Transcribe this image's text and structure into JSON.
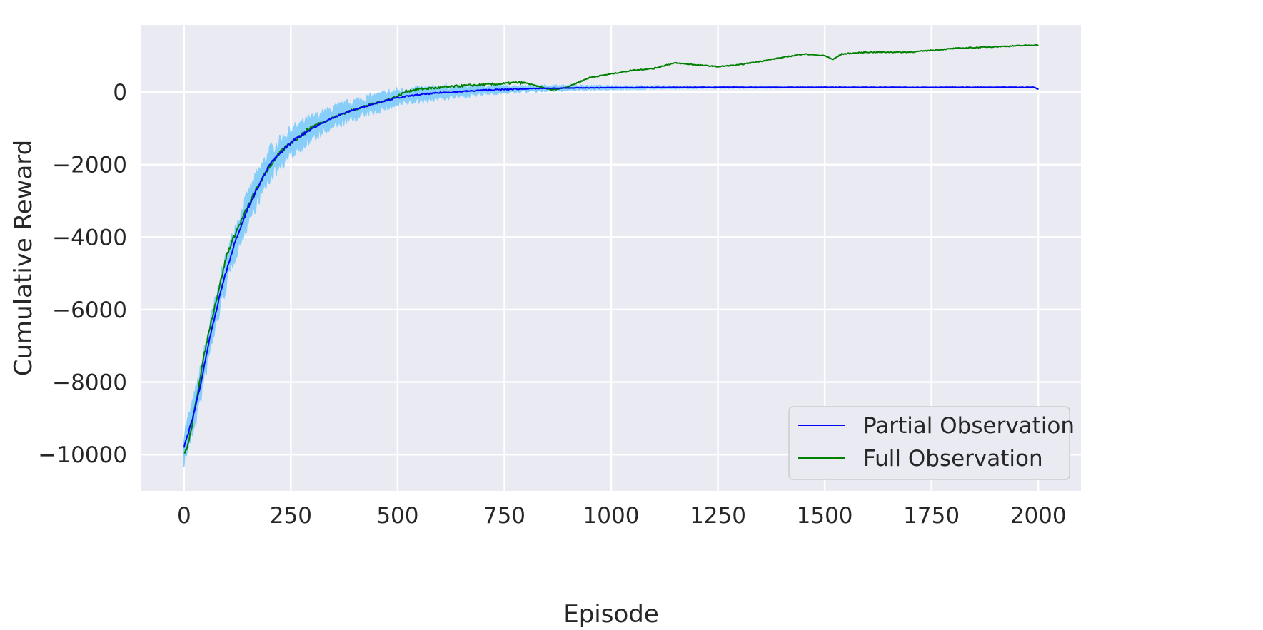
{
  "chart_data": {
    "type": "line",
    "title": "",
    "xlabel": "Episode",
    "ylabel": "Cumulative Reward",
    "xlim": [
      -100,
      2100
    ],
    "ylim": [
      -11000,
      1850
    ],
    "xticks": [
      0,
      250,
      500,
      750,
      1000,
      1250,
      1500,
      1750,
      2000
    ],
    "xtick_labels": [
      "0",
      "250",
      "500",
      "750",
      "1000",
      "1250",
      "1500",
      "1750",
      "2000"
    ],
    "yticks": [
      -10000,
      -8000,
      -6000,
      -4000,
      -2000,
      0
    ],
    "ytick_labels": [
      "−10000",
      "−8000",
      "−6000",
      "−4000",
      "−2000",
      "0"
    ],
    "grid": true,
    "background": "#eaeaf2",
    "legend_position": "bottom-right",
    "series": [
      {
        "name": "Partial Observation",
        "color": "#0000ff",
        "band_color": "#87cefa",
        "x": [
          0,
          10,
          20,
          30,
          40,
          50,
          60,
          70,
          80,
          90,
          100,
          110,
          120,
          130,
          140,
          150,
          160,
          170,
          180,
          190,
          200,
          220,
          240,
          260,
          280,
          300,
          320,
          340,
          360,
          380,
          400,
          420,
          440,
          460,
          480,
          500,
          520,
          540,
          560,
          580,
          600,
          630,
          660,
          700,
          750,
          800,
          850,
          900,
          950,
          1000,
          1100,
          1200,
          1300,
          1400,
          1500,
          1600,
          1700,
          1800,
          1900,
          1990,
          2000
        ],
        "y": [
          -9800,
          -9400,
          -9000,
          -8500,
          -8000,
          -7400,
          -6800,
          -6300,
          -5800,
          -5300,
          -4900,
          -4500,
          -4100,
          -3800,
          -3500,
          -3200,
          -2950,
          -2700,
          -2450,
          -2250,
          -2000,
          -1750,
          -1500,
          -1300,
          -1150,
          -1000,
          -880,
          -760,
          -650,
          -560,
          -480,
          -410,
          -340,
          -270,
          -210,
          -160,
          -120,
          -90,
          -60,
          -40,
          -20,
          0,
          20,
          50,
          70,
          90,
          100,
          110,
          115,
          120,
          125,
          130,
          130,
          130,
          130,
          130,
          130,
          130,
          130,
          130,
          80
        ],
        "band_halfwidth": [
          450,
          450,
          450,
          450,
          450,
          450,
          450,
          450,
          450,
          450,
          450,
          450,
          450,
          450,
          450,
          450,
          450,
          450,
          450,
          450,
          450,
          420,
          400,
          380,
          360,
          340,
          320,
          300,
          290,
          280,
          270,
          260,
          250,
          240,
          230,
          220,
          210,
          200,
          190,
          180,
          170,
          160,
          140,
          120,
          100,
          90,
          80,
          70,
          60,
          50,
          40,
          30,
          25,
          20,
          15,
          10,
          8,
          6,
          5,
          5,
          5
        ]
      },
      {
        "name": "Full Observation",
        "color": "#008000",
        "x": [
          0,
          10,
          20,
          30,
          40,
          50,
          60,
          70,
          80,
          90,
          100,
          120,
          140,
          160,
          180,
          200,
          220,
          240,
          260,
          280,
          300,
          320,
          340,
          360,
          380,
          400,
          420,
          440,
          460,
          480,
          500,
          520,
          550,
          600,
          650,
          700,
          750,
          780,
          800,
          830,
          860,
          880,
          900,
          950,
          1000,
          1050,
          1100,
          1130,
          1150,
          1200,
          1250,
          1300,
          1350,
          1400,
          1450,
          1500,
          1520,
          1540,
          1600,
          1700,
          1750,
          1800,
          1900,
          2000
        ],
        "y": [
          -10000,
          -9700,
          -9100,
          -8400,
          -7700,
          -7100,
          -6500,
          -6000,
          -5500,
          -5000,
          -4500,
          -3900,
          -3400,
          -2900,
          -2450,
          -2050,
          -1750,
          -1500,
          -1300,
          -1150,
          -950,
          -850,
          -750,
          -650,
          -560,
          -480,
          -400,
          -330,
          -270,
          -200,
          -120,
          20,
          80,
          120,
          170,
          200,
          230,
          260,
          250,
          150,
          60,
          90,
          150,
          400,
          500,
          600,
          650,
          750,
          800,
          750,
          700,
          750,
          850,
          950,
          1050,
          1000,
          900,
          1050,
          1100,
          1100,
          1150,
          1200,
          1250,
          1300
        ]
      }
    ]
  }
}
